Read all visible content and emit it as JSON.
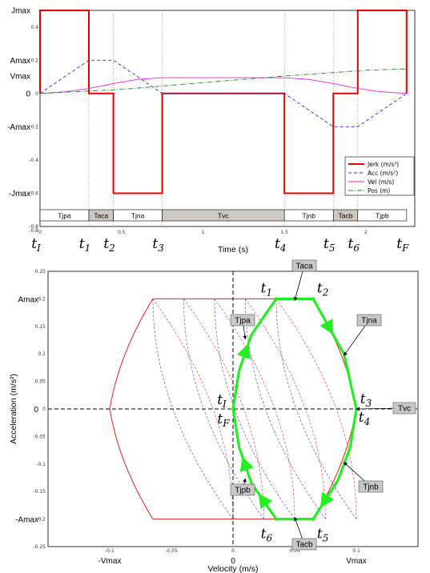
{
  "chart_data": [
    {
      "type": "line",
      "xlabel": "Time (s)",
      "x_ticks": [
        "0",
        "0.5",
        "1",
        "1.5",
        "2"
      ],
      "xlim": [
        0,
        2.3
      ],
      "ylim": [
        -0.8,
        0.5
      ],
      "y_ticks": [
        "0.4",
        "0.2",
        "0",
        "-0.2",
        "-0.4",
        "-0.6",
        "-0.8"
      ],
      "y_named_levels": [
        "Jmax",
        "Amax",
        "Vmax",
        "0",
        "-Amax",
        "-Jmax"
      ],
      "series": [
        {
          "name": "Jerk (m/s³)",
          "color": "#e00000",
          "style": "solid",
          "x": [
            0,
            0,
            0.3,
            0.3,
            0.45,
            0.45,
            0.75,
            0.75,
            1.5,
            1.5,
            1.8,
            1.8,
            1.95,
            1.95,
            2.25,
            2.25
          ],
          "y": [
            0,
            0.5,
            0.5,
            0,
            0,
            -0.6,
            -0.6,
            0,
            0,
            -0.6,
            -0.6,
            0,
            0,
            0.5,
            0.5,
            0
          ]
        },
        {
          "name": "Acc (m/s²)",
          "color": "#2030d0",
          "style": "dashed",
          "x": [
            0,
            0.3,
            0.45,
            0.75,
            1.5,
            1.8,
            1.95,
            2.25
          ],
          "y": [
            0,
            0.2,
            0.2,
            0,
            0,
            -0.2,
            -0.2,
            0
          ]
        },
        {
          "name": "Vel  (m/s)",
          "color": "#e020e0",
          "style": "solid",
          "x": [
            0,
            0.15,
            0.3,
            0.45,
            0.6,
            0.75,
            1.5,
            1.65,
            1.8,
            1.95,
            2.1,
            2.25
          ],
          "y": [
            0,
            0.01,
            0.03,
            0.06,
            0.085,
            0.095,
            0.095,
            0.085,
            0.06,
            0.03,
            0.01,
            0
          ]
        },
        {
          "name": "Pos (m)",
          "color": "#208020",
          "style": "dash-dot",
          "x": [
            0,
            0.5,
            1.0,
            1.5,
            2.0,
            2.25
          ],
          "y": [
            0,
            0.025,
            0.065,
            0.105,
            0.14,
            0.148
          ]
        }
      ],
      "legend_placement": "bottom-right",
      "phases": [
        {
          "label": "Tjpa",
          "x0": 0,
          "x1": 0.3,
          "shaded": false
        },
        {
          "label": "Taca",
          "x0": 0.3,
          "x1": 0.45,
          "shaded": true
        },
        {
          "label": "Tjna",
          "x0": 0.45,
          "x1": 0.75,
          "shaded": false
        },
        {
          "label": "Tvc",
          "x0": 0.75,
          "x1": 1.5,
          "shaded": true
        },
        {
          "label": "Tjnb",
          "x0": 1.5,
          "x1": 1.8,
          "shaded": false
        },
        {
          "label": "Tacb",
          "x0": 1.8,
          "x1": 1.95,
          "shaded": true
        },
        {
          "label": "Tjpb",
          "x0": 1.95,
          "x1": 2.25,
          "shaded": false
        }
      ],
      "time_instants": [
        {
          "label": "t",
          "sub": "I",
          "x": 0
        },
        {
          "label": "t",
          "sub": "1",
          "x": 0.3
        },
        {
          "label": "t",
          "sub": "2",
          "x": 0.45
        },
        {
          "label": "t",
          "sub": "3",
          "x": 0.75
        },
        {
          "label": "t",
          "sub": "4",
          "x": 1.5
        },
        {
          "label": "t",
          "sub": "5",
          "x": 1.8
        },
        {
          "label": "t",
          "sub": "6",
          "x": 1.95
        },
        {
          "label": "t",
          "sub": "F",
          "x": 2.25
        }
      ]
    },
    {
      "type": "line",
      "xlabel": "Velocity (m/s)",
      "ylabel": "Acceleration (m/s²)",
      "xlim": [
        -0.15,
        0.15
      ],
      "ylim": [
        -0.25,
        0.25
      ],
      "x_ticks": [
        "-0.1",
        "-0.05",
        "0",
        "0.05",
        "0.1"
      ],
      "y_ticks": [
        "0.25",
        "0.2",
        "0.15",
        "0.1",
        "0.05",
        "0",
        "-0.05",
        "-0.1",
        "-0.15",
        "-0.2",
        "-0.25"
      ],
      "x_named_levels": [
        "-Vmax",
        "0",
        "Vmax"
      ],
      "y_named_levels": [
        "Amax",
        "0",
        "-Amax"
      ],
      "boundary_vertices": [
        [
          -0.065,
          0.2
        ],
        [
          0.065,
          0.2
        ],
        [
          0.1,
          0
        ],
        [
          0.065,
          -0.2
        ],
        [
          -0.065,
          -0.2
        ],
        [
          -0.1,
          0
        ]
      ],
      "grid_arc_offsets": [
        -0.065,
        -0.04,
        -0.015,
        0.01,
        0.035
      ],
      "grid_arc_width": 0.065,
      "trajectory": {
        "color": "#22ee22",
        "x": [
          0,
          0.005,
          0.015,
          0.035,
          0.065,
          0.09,
          0.1,
          0.095,
          0.085,
          0.065,
          0.035,
          0.015,
          0.005,
          0
        ],
        "y": [
          0,
          0.07,
          0.135,
          0.2,
          0.2,
          0.1,
          0,
          -0.07,
          -0.13,
          -0.2,
          -0.2,
          -0.135,
          -0.07,
          0
        ]
      },
      "point_labels": [
        {
          "label": "t",
          "sub": "1",
          "x": 0.035,
          "y": 0.2
        },
        {
          "label": "t",
          "sub": "2",
          "x": 0.065,
          "y": 0.2
        },
        {
          "label": "t",
          "sub": "3",
          "x": 0.1,
          "y": 0
        },
        {
          "label": "t",
          "sub": "4",
          "x": 0.1,
          "y": 0
        },
        {
          "label": "t",
          "sub": "5",
          "x": 0.065,
          "y": -0.2
        },
        {
          "label": "t",
          "sub": "6",
          "x": 0.035,
          "y": -0.2
        },
        {
          "label": "t",
          "sub": "I",
          "x": 0,
          "y": 0
        },
        {
          "label": "t",
          "sub": "F",
          "x": 0,
          "y": 0
        }
      ],
      "callouts": [
        "Taca",
        "Tjpa",
        "Tjna",
        "Tvc",
        "Tjnb",
        "Tjpb",
        "Tacb"
      ]
    }
  ]
}
